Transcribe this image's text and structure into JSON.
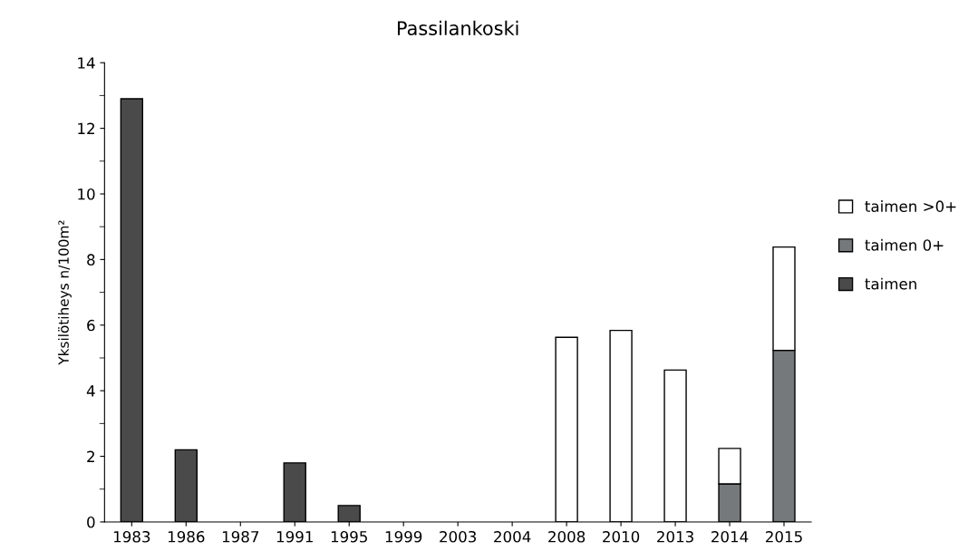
{
  "chart_data": {
    "type": "bar",
    "stacked": true,
    "title": "Passilankoski",
    "ylabel": "Yksilötiheys n/100m²",
    "categories": [
      "1983",
      "1986",
      "1987",
      "1991",
      "1995",
      "1999",
      "2003",
      "2004",
      "2008",
      "2010",
      "2013",
      "2014",
      "2015"
    ],
    "series": [
      {
        "name": "taimen",
        "color": "#4a4a4a",
        "values": [
          12.9,
          2.2,
          null,
          1.8,
          0.5,
          null,
          null,
          null,
          null,
          null,
          null,
          null,
          null
        ]
      },
      {
        "name": "taimen 0+",
        "color": "#76797c",
        "values": [
          null,
          null,
          null,
          null,
          null,
          null,
          null,
          null,
          null,
          null,
          null,
          1.16,
          5.23
        ]
      },
      {
        "name": "taimen >0+",
        "color": "#ffffff",
        "values": [
          null,
          null,
          null,
          null,
          null,
          null,
          null,
          null,
          5.63,
          5.84,
          4.63,
          1.08,
          3.15
        ]
      }
    ],
    "ylim": [
      0,
      14
    ],
    "yticks": [
      0,
      2,
      4,
      6,
      8,
      10,
      12,
      14
    ],
    "grid": false,
    "legend": "right"
  }
}
